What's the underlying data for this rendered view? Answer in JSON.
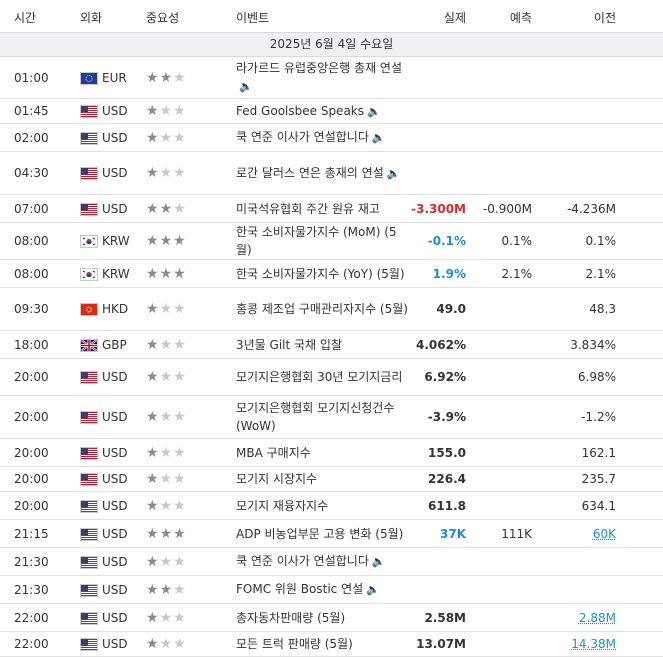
{
  "header": {
    "time": "시간",
    "currency": "외화",
    "importance": "중요성",
    "event": "이벤트",
    "actual": "실제",
    "forecast": "예측",
    "previous": "이전"
  },
  "date_label": "2025년 6월 4일 수요일",
  "colors": {
    "negative": "#e3262b",
    "positive": "#1a8fd8"
  },
  "rows": [
    {
      "time": "01:00",
      "flag": "eu",
      "currency": "EUR",
      "stars": 2,
      "event": "라가르드 유럽중앙은행 총재 연설",
      "speech": true,
      "actual": "",
      "actual_color": "",
      "forecast": "",
      "previous": "",
      "prev_style": ""
    },
    {
      "time": "01:45",
      "flag": "us",
      "currency": "USD",
      "stars": 1,
      "event": "Fed Goolsbee Speaks",
      "speech": true,
      "actual": "",
      "actual_color": "",
      "forecast": "",
      "previous": "",
      "prev_style": ""
    },
    {
      "time": "02:00",
      "flag": "us",
      "currency": "USD",
      "stars": 1,
      "event": "쿡 연준 이사가 연설합니다",
      "speech": true,
      "actual": "",
      "actual_color": "",
      "forecast": "",
      "previous": "",
      "prev_style": ""
    },
    {
      "time": "04:30",
      "flag": "us",
      "currency": "USD",
      "stars": 1,
      "event": "로간 달러스 연은 총재의 연설",
      "speech": true,
      "actual": "",
      "actual_color": "",
      "forecast": "",
      "previous": "",
      "prev_style": ""
    },
    {
      "time": "07:00",
      "flag": "us",
      "currency": "USD",
      "stars": 2,
      "event": "미국석유협회 주간 원유 재고",
      "speech": false,
      "actual": "-3.300M",
      "actual_color": "red",
      "forecast": "-0.900M",
      "previous": "-4.236M",
      "prev_style": ""
    },
    {
      "time": "08:00",
      "flag": "kr",
      "currency": "KRW",
      "stars": 3,
      "event": "한국 소비자물가지수 (MoM) (5월)",
      "speech": false,
      "actual": "-0.1%",
      "actual_color": "blue",
      "forecast": "0.1%",
      "previous": "0.1%",
      "prev_style": ""
    },
    {
      "time": "08:00",
      "flag": "kr",
      "currency": "KRW",
      "stars": 3,
      "event": "한국 소비자물가지수 (YoY) (5월)",
      "speech": false,
      "actual": "1.9%",
      "actual_color": "blue",
      "forecast": "2.1%",
      "previous": "2.1%",
      "prev_style": ""
    },
    {
      "time": "09:30",
      "flag": "hk",
      "currency": "HKD",
      "stars": 1,
      "event": "홍콩 제조업 구매관리자지수 (5월)",
      "speech": false,
      "actual": "49.0",
      "actual_color": "",
      "forecast": "",
      "previous": "48.3",
      "prev_style": ""
    },
    {
      "time": "18:00",
      "flag": "gb",
      "currency": "GBP",
      "stars": 1,
      "event": "3년물 Gilt 국채 입찰",
      "speech": false,
      "actual": "4.062%",
      "actual_color": "",
      "forecast": "",
      "previous": "3.834%",
      "prev_style": ""
    },
    {
      "time": "20:00",
      "flag": "us",
      "currency": "USD",
      "stars": 1,
      "event": "모기지은행협회 30년 모기지금리",
      "speech": false,
      "actual": "6.92%",
      "actual_color": "",
      "forecast": "",
      "previous": "6.98%",
      "prev_style": ""
    },
    {
      "time": "20:00",
      "flag": "us",
      "currency": "USD",
      "stars": 1,
      "event": "모기지은행협회 모기지신청건수 (WoW)",
      "speech": false,
      "actual": "-3.9%",
      "actual_color": "",
      "forecast": "",
      "previous": "-1.2%",
      "prev_style": ""
    },
    {
      "time": "20:00",
      "flag": "us",
      "currency": "USD",
      "stars": 1,
      "event": "MBA 구매지수",
      "speech": false,
      "actual": "155.0",
      "actual_color": "",
      "forecast": "",
      "previous": "162.1",
      "prev_style": ""
    },
    {
      "time": "20:00",
      "flag": "us",
      "currency": "USD",
      "stars": 1,
      "event": "모기지 시장지수",
      "speech": false,
      "actual": "226.4",
      "actual_color": "",
      "forecast": "",
      "previous": "235.7",
      "prev_style": ""
    },
    {
      "time": "20:00",
      "flag": "us",
      "currency": "USD",
      "stars": 1,
      "event": "모기지 재융자지수",
      "speech": false,
      "actual": "611.8",
      "actual_color": "",
      "forecast": "",
      "previous": "634.1",
      "prev_style": ""
    },
    {
      "time": "21:15",
      "flag": "us",
      "currency": "USD",
      "stars": 3,
      "event": "ADP 비농업부문 고용 변화 (5월)",
      "speech": false,
      "actual": "37K",
      "actual_color": "blue",
      "forecast": "111K",
      "previous": "60K",
      "prev_style": "link"
    },
    {
      "time": "21:30",
      "flag": "us",
      "currency": "USD",
      "stars": 1,
      "event": "쿡 연준 이사가 연설합니다",
      "speech": true,
      "actual": "",
      "actual_color": "",
      "forecast": "",
      "previous": "",
      "prev_style": ""
    },
    {
      "time": "21:30",
      "flag": "us",
      "currency": "USD",
      "stars": 2,
      "event": "FOMC 위원 Bostic 연설",
      "speech": true,
      "actual": "",
      "actual_color": "",
      "forecast": "",
      "previous": "",
      "prev_style": ""
    },
    {
      "time": "22:00",
      "flag": "us",
      "currency": "USD",
      "stars": 1,
      "event": "총자동차판매량 (5월)",
      "speech": false,
      "actual": "2.58M",
      "actual_color": "",
      "forecast": "",
      "previous": "2.88M",
      "prev_style": "link"
    },
    {
      "time": "22:00",
      "flag": "us",
      "currency": "USD",
      "stars": 1,
      "event": "모든 트럭 판매량 (5월)",
      "speech": false,
      "actual": "13.07M",
      "actual_color": "",
      "forecast": "",
      "previous": "14.38M",
      "prev_style": "link"
    }
  ]
}
